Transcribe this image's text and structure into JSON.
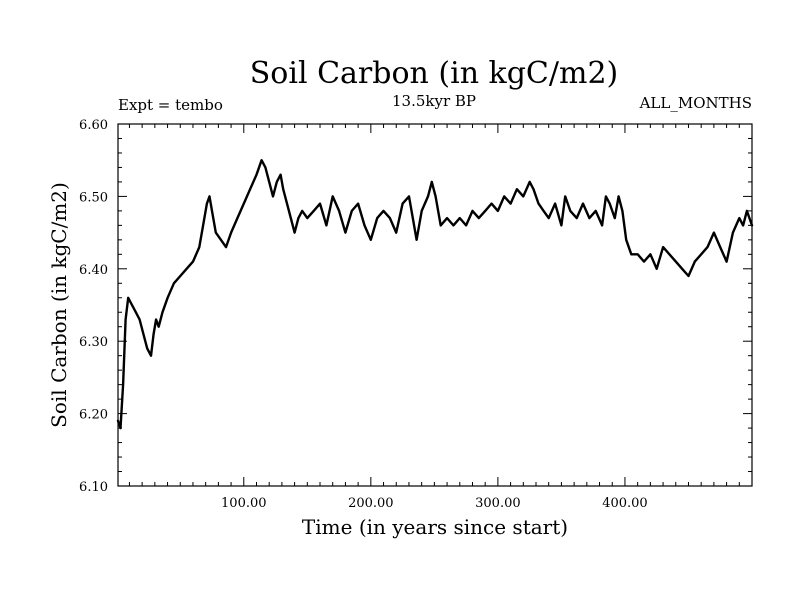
{
  "chart_data": {
    "type": "line",
    "title": "Soil Carbon (in kgC/m2)",
    "subtitle": "13.5kyr BP",
    "left_label": "Expt = tembo",
    "right_label": "ALL_MONTHS",
    "xlabel": "Time (in years since start)",
    "ylabel": "Soil Carbon (in kgC/m2)",
    "xlim": [
      1,
      500
    ],
    "ylim": [
      6.1,
      6.6
    ],
    "x_ticks": [
      100,
      200,
      300,
      400
    ],
    "x_tick_labels": [
      "100.00",
      "200.00",
      "300.00",
      "400.00"
    ],
    "y_ticks": [
      6.1,
      6.2,
      6.3,
      6.4,
      6.5,
      6.6
    ],
    "y_tick_labels": [
      "6.10",
      "6.20",
      "6.30",
      "6.40",
      "6.50",
      "6.60"
    ],
    "grid": false,
    "series": [
      {
        "name": "Soil Carbon",
        "color": "#000000",
        "x": [
          1,
          3,
          5,
          7,
          9,
          12,
          15,
          18,
          21,
          24,
          27,
          29,
          31,
          33,
          36,
          40,
          45,
          50,
          55,
          60,
          65,
          68,
          71,
          73,
          75,
          78,
          82,
          86,
          90,
          95,
          100,
          105,
          110,
          114,
          117,
          120,
          123,
          126,
          129,
          131,
          134,
          137,
          140,
          143,
          146,
          150,
          155,
          160,
          165,
          170,
          175,
          180,
          185,
          190,
          195,
          200,
          205,
          210,
          215,
          220,
          225,
          230,
          233,
          236,
          240,
          245,
          248,
          251,
          255,
          260,
          265,
          270,
          275,
          280,
          285,
          290,
          295,
          300,
          305,
          310,
          315,
          320,
          325,
          328,
          332,
          336,
          340,
          345,
          350,
          353,
          357,
          362,
          367,
          372,
          377,
          382,
          385,
          388,
          392,
          395,
          398,
          401,
          405,
          410,
          415,
          420,
          425,
          430,
          435,
          440,
          445,
          450,
          455,
          460,
          465,
          470,
          475,
          480,
          485,
          490,
          493,
          496,
          500
        ],
        "y": [
          6.19,
          6.18,
          6.24,
          6.33,
          6.36,
          6.35,
          6.34,
          6.33,
          6.31,
          6.29,
          6.28,
          6.31,
          6.33,
          6.32,
          6.34,
          6.36,
          6.38,
          6.39,
          6.4,
          6.41,
          6.43,
          6.46,
          6.49,
          6.5,
          6.48,
          6.45,
          6.44,
          6.43,
          6.45,
          6.47,
          6.49,
          6.51,
          6.53,
          6.55,
          6.54,
          6.52,
          6.5,
          6.52,
          6.53,
          6.51,
          6.49,
          6.47,
          6.45,
          6.47,
          6.48,
          6.47,
          6.48,
          6.49,
          6.46,
          6.5,
          6.48,
          6.45,
          6.48,
          6.49,
          6.46,
          6.44,
          6.47,
          6.48,
          6.47,
          6.45,
          6.49,
          6.5,
          6.47,
          6.44,
          6.48,
          6.5,
          6.52,
          6.5,
          6.46,
          6.47,
          6.46,
          6.47,
          6.46,
          6.48,
          6.47,
          6.48,
          6.49,
          6.48,
          6.5,
          6.49,
          6.51,
          6.5,
          6.52,
          6.51,
          6.49,
          6.48,
          6.47,
          6.49,
          6.46,
          6.5,
          6.48,
          6.47,
          6.49,
          6.47,
          6.48,
          6.46,
          6.5,
          6.49,
          6.47,
          6.5,
          6.48,
          6.44,
          6.42,
          6.42,
          6.41,
          6.42,
          6.4,
          6.43,
          6.42,
          6.41,
          6.4,
          6.39,
          6.41,
          6.42,
          6.43,
          6.45,
          6.43,
          6.41,
          6.45,
          6.47,
          6.46,
          6.48,
          6.46
        ]
      }
    ]
  }
}
